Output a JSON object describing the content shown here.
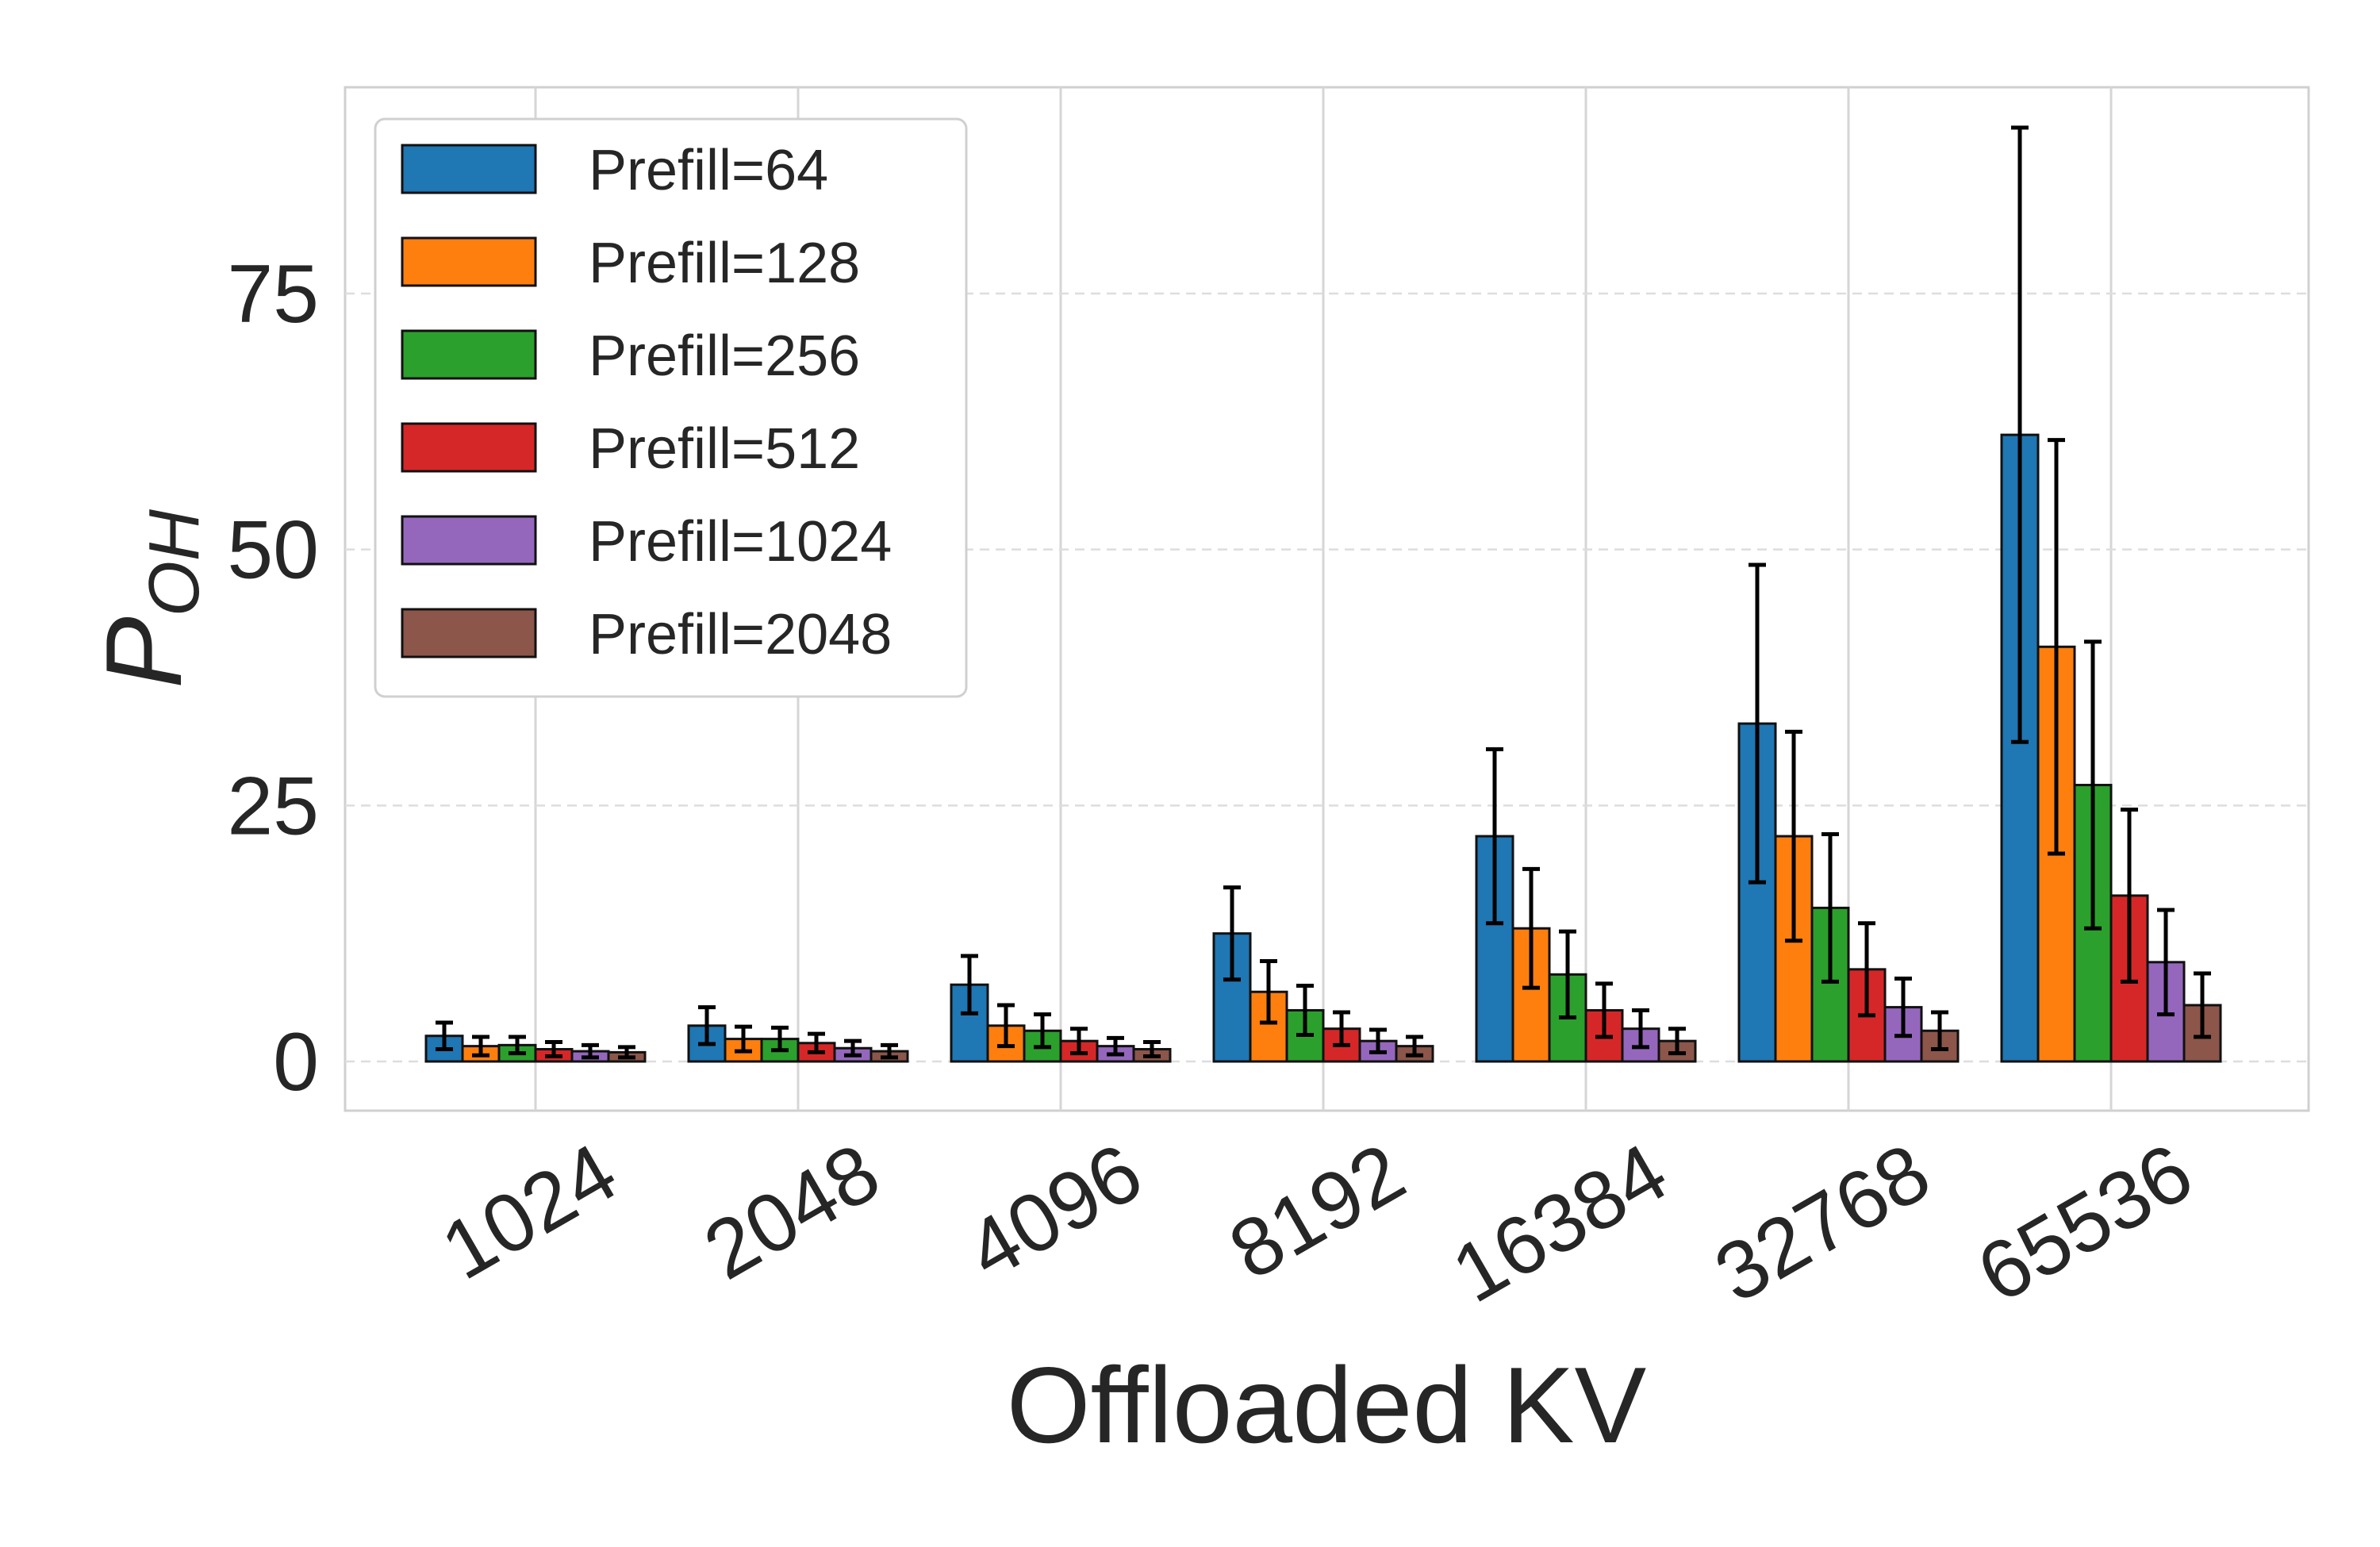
{
  "chart_data": {
    "type": "bar",
    "title": "",
    "xlabel": "Offloaded KV",
    "ylabel": {
      "base": "P",
      "subscript": "OH"
    },
    "categories": [
      "1024",
      "2048",
      "4096",
      "8192",
      "16384",
      "32768",
      "65536"
    ],
    "ylim": [
      -6,
      95
    ],
    "yticks": [
      0,
      25,
      50,
      75
    ],
    "grid": true,
    "legend_position": "top-left",
    "series": [
      {
        "name": "Prefill=64",
        "color": "#1f77b4",
        "values": [
          2.5,
          3.5,
          7.5,
          12.5,
          22,
          33,
          61.2
        ],
        "errors": [
          1.3,
          1.8,
          2.8,
          4.5,
          8.5,
          15.5,
          30
        ]
      },
      {
        "name": "Prefill=128",
        "color": "#ff7f0e",
        "values": [
          1.5,
          2.2,
          3.5,
          6.8,
          13,
          22,
          40.5
        ],
        "errors": [
          0.9,
          1.2,
          2.0,
          3.0,
          5.8,
          10.2,
          20.2
        ]
      },
      {
        "name": "Prefill=256",
        "color": "#2ca02c",
        "values": [
          1.6,
          2.2,
          3.0,
          5.0,
          8.5,
          15,
          27
        ],
        "errors": [
          0.8,
          1.1,
          1.6,
          2.4,
          4.2,
          7.2,
          14
        ]
      },
      {
        "name": "Prefill=512",
        "color": "#d62728",
        "values": [
          1.2,
          1.8,
          2.0,
          3.2,
          5.0,
          9.0,
          16.2
        ],
        "errors": [
          0.7,
          0.9,
          1.2,
          1.6,
          2.6,
          4.5,
          8.4
        ]
      },
      {
        "name": "Prefill=1024",
        "color": "#9467bd",
        "values": [
          1.0,
          1.3,
          1.5,
          2.0,
          3.2,
          5.3,
          9.7
        ],
        "errors": [
          0.6,
          0.7,
          0.8,
          1.1,
          1.8,
          2.8,
          5.1
        ]
      },
      {
        "name": "Prefill=2048",
        "color": "#8c564b",
        "values": [
          0.9,
          1.0,
          1.2,
          1.5,
          2.0,
          3.0,
          5.5
        ],
        "errors": [
          0.5,
          0.6,
          0.7,
          0.9,
          1.2,
          1.8,
          3.1
        ]
      }
    ]
  }
}
